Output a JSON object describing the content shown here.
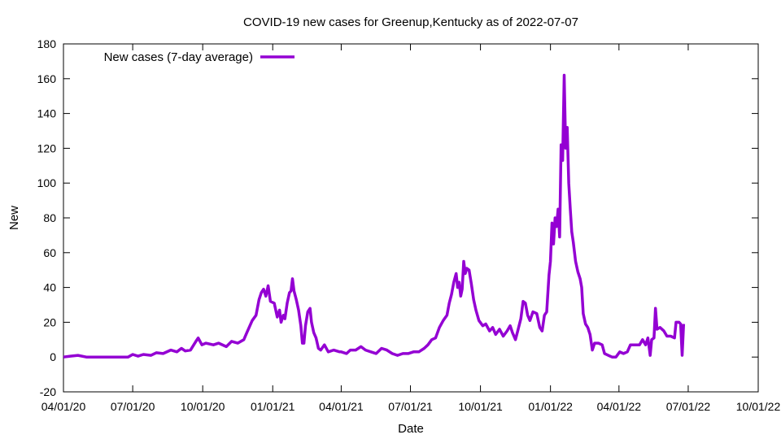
{
  "chart_data": {
    "type": "line",
    "title": "COVID-19 new cases for Greenup,Kentucky as of 2022-07-07",
    "xlabel": "Date",
    "ylabel": "New",
    "ylim": [
      -20,
      180
    ],
    "yticks": [
      -20,
      0,
      20,
      40,
      60,
      80,
      100,
      120,
      140,
      160,
      180
    ],
    "xlim": [
      "2020-04-01",
      "2022-10-01"
    ],
    "xticks": [
      {
        "date": "2020-04-01",
        "label": "04/01/20"
      },
      {
        "date": "2020-07-01",
        "label": "07/01/20"
      },
      {
        "date": "2020-10-01",
        "label": "10/01/20"
      },
      {
        "date": "2021-01-01",
        "label": "01/01/21"
      },
      {
        "date": "2021-04-01",
        "label": "04/01/21"
      },
      {
        "date": "2021-07-01",
        "label": "07/01/21"
      },
      {
        "date": "2021-10-01",
        "label": "10/01/21"
      },
      {
        "date": "2022-01-01",
        "label": "01/01/22"
      },
      {
        "date": "2022-04-01",
        "label": "04/01/22"
      },
      {
        "date": "2022-07-01",
        "label": "07/01/22"
      },
      {
        "date": "2022-10-01",
        "label": "10/01/22"
      }
    ],
    "legend": "top-left",
    "series": [
      {
        "name": "New cases (7-day average)",
        "color": "#9400d3",
        "points": [
          [
            "2020-04-01",
            0
          ],
          [
            "2020-04-10",
            0.5
          ],
          [
            "2020-04-20",
            1
          ],
          [
            "2020-05-01",
            0
          ],
          [
            "2020-05-20",
            0
          ],
          [
            "2020-06-10",
            0
          ],
          [
            "2020-06-25",
            0
          ],
          [
            "2020-07-01",
            1.5
          ],
          [
            "2020-07-08",
            0.5
          ],
          [
            "2020-07-15",
            1.5
          ],
          [
            "2020-07-25",
            1
          ],
          [
            "2020-08-01",
            2.5
          ],
          [
            "2020-08-10",
            2
          ],
          [
            "2020-08-20",
            4
          ],
          [
            "2020-08-28",
            3
          ],
          [
            "2020-09-03",
            5
          ],
          [
            "2020-09-08",
            3.5
          ],
          [
            "2020-09-15",
            4
          ],
          [
            "2020-09-22",
            9
          ],
          [
            "2020-09-25",
            11
          ],
          [
            "2020-09-30",
            7
          ],
          [
            "2020-10-05",
            8
          ],
          [
            "2020-10-15",
            7
          ],
          [
            "2020-10-22",
            8
          ],
          [
            "2020-11-01",
            6
          ],
          [
            "2020-11-08",
            9
          ],
          [
            "2020-11-16",
            8
          ],
          [
            "2020-11-24",
            10
          ],
          [
            "2020-11-28",
            14
          ],
          [
            "2020-12-05",
            21
          ],
          [
            "2020-12-10",
            24
          ],
          [
            "2020-12-14",
            33
          ],
          [
            "2020-12-17",
            37
          ],
          [
            "2020-12-20",
            39
          ],
          [
            "2020-12-23",
            35
          ],
          [
            "2020-12-26",
            41
          ],
          [
            "2020-12-29",
            32
          ],
          [
            "2021-01-03",
            31
          ],
          [
            "2021-01-07",
            23
          ],
          [
            "2021-01-10",
            27
          ],
          [
            "2021-01-12",
            20
          ],
          [
            "2021-01-15",
            24
          ],
          [
            "2021-01-17",
            22
          ],
          [
            "2021-01-20",
            31
          ],
          [
            "2021-01-23",
            37
          ],
          [
            "2021-01-25",
            38
          ],
          [
            "2021-01-27",
            45
          ],
          [
            "2021-01-29",
            38
          ],
          [
            "2021-02-01",
            33
          ],
          [
            "2021-02-04",
            27
          ],
          [
            "2021-02-07",
            18
          ],
          [
            "2021-02-09",
            8
          ],
          [
            "2021-02-11",
            8
          ],
          [
            "2021-02-13",
            18
          ],
          [
            "2021-02-16",
            26
          ],
          [
            "2021-02-19",
            28
          ],
          [
            "2021-02-21",
            20
          ],
          [
            "2021-02-24",
            14
          ],
          [
            "2021-02-27",
            11
          ],
          [
            "2021-03-02",
            5
          ],
          [
            "2021-03-05",
            4
          ],
          [
            "2021-03-10",
            7
          ],
          [
            "2021-03-15",
            3
          ],
          [
            "2021-03-22",
            4
          ],
          [
            "2021-03-30",
            3
          ],
          [
            "2021-04-01",
            3
          ],
          [
            "2021-04-08",
            2
          ],
          [
            "2021-04-13",
            4
          ],
          [
            "2021-04-20",
            4
          ],
          [
            "2021-04-27",
            6
          ],
          [
            "2021-05-03",
            4
          ],
          [
            "2021-05-10",
            3
          ],
          [
            "2021-05-17",
            2
          ],
          [
            "2021-05-24",
            5
          ],
          [
            "2021-05-31",
            4
          ],
          [
            "2021-06-07",
            2
          ],
          [
            "2021-06-14",
            1
          ],
          [
            "2021-06-21",
            2
          ],
          [
            "2021-06-28",
            2
          ],
          [
            "2021-07-05",
            3
          ],
          [
            "2021-07-12",
            3
          ],
          [
            "2021-07-19",
            5
          ],
          [
            "2021-07-24",
            7
          ],
          [
            "2021-07-29",
            10
          ],
          [
            "2021-08-03",
            11
          ],
          [
            "2021-08-08",
            17
          ],
          [
            "2021-08-13",
            21
          ],
          [
            "2021-08-18",
            24
          ],
          [
            "2021-08-21",
            31
          ],
          [
            "2021-08-24",
            36
          ],
          [
            "2021-08-27",
            43
          ],
          [
            "2021-08-30",
            48
          ],
          [
            "2021-09-01",
            40
          ],
          [
            "2021-09-03",
            43
          ],
          [
            "2021-09-05",
            35
          ],
          [
            "2021-09-07",
            39
          ],
          [
            "2021-09-09",
            55
          ],
          [
            "2021-09-11",
            48
          ],
          [
            "2021-09-13",
            51
          ],
          [
            "2021-09-16",
            50
          ],
          [
            "2021-09-19",
            42
          ],
          [
            "2021-09-22",
            33
          ],
          [
            "2021-09-25",
            27
          ],
          [
            "2021-09-29",
            21
          ],
          [
            "2021-10-04",
            18
          ],
          [
            "2021-10-08",
            19
          ],
          [
            "2021-10-13",
            15
          ],
          [
            "2021-10-17",
            17
          ],
          [
            "2021-10-21",
            13
          ],
          [
            "2021-10-26",
            16
          ],
          [
            "2021-10-31",
            12
          ],
          [
            "2021-11-05",
            15
          ],
          [
            "2021-11-09",
            18
          ],
          [
            "2021-11-12",
            14
          ],
          [
            "2021-11-16",
            10
          ],
          [
            "2021-11-19",
            15
          ],
          [
            "2021-11-23",
            22
          ],
          [
            "2021-11-26",
            32
          ],
          [
            "2021-11-29",
            31
          ],
          [
            "2021-12-02",
            24
          ],
          [
            "2021-12-05",
            21
          ],
          [
            "2021-12-09",
            26
          ],
          [
            "2021-12-14",
            25
          ],
          [
            "2021-12-18",
            17
          ],
          [
            "2021-12-21",
            15
          ],
          [
            "2021-12-24",
            24
          ],
          [
            "2021-12-27",
            26
          ],
          [
            "2021-12-30",
            47
          ],
          [
            "2022-01-01",
            55
          ],
          [
            "2022-01-03",
            77
          ],
          [
            "2022-01-05",
            65
          ],
          [
            "2022-01-07",
            80
          ],
          [
            "2022-01-09",
            75
          ],
          [
            "2022-01-11",
            85
          ],
          [
            "2022-01-13",
            69
          ],
          [
            "2022-01-15",
            122
          ],
          [
            "2022-01-17",
            113
          ],
          [
            "2022-01-19",
            162
          ],
          [
            "2022-01-21",
            120
          ],
          [
            "2022-01-23",
            132
          ],
          [
            "2022-01-25",
            100
          ],
          [
            "2022-01-27",
            85
          ],
          [
            "2022-01-29",
            72
          ],
          [
            "2022-01-31",
            66
          ],
          [
            "2022-02-03",
            55
          ],
          [
            "2022-02-06",
            49
          ],
          [
            "2022-02-09",
            45
          ],
          [
            "2022-02-11",
            40
          ],
          [
            "2022-02-13",
            25
          ],
          [
            "2022-02-16",
            19
          ],
          [
            "2022-02-19",
            17
          ],
          [
            "2022-02-22",
            13
          ],
          [
            "2022-02-25",
            4
          ],
          [
            "2022-02-28",
            8
          ],
          [
            "2022-03-05",
            8
          ],
          [
            "2022-03-10",
            7
          ],
          [
            "2022-03-13",
            2
          ],
          [
            "2022-03-18",
            1
          ],
          [
            "2022-03-23",
            0
          ],
          [
            "2022-03-28",
            0
          ],
          [
            "2022-04-02",
            3
          ],
          [
            "2022-04-07",
            2
          ],
          [
            "2022-04-12",
            3
          ],
          [
            "2022-04-16",
            7
          ],
          [
            "2022-04-22",
            7
          ],
          [
            "2022-04-28",
            7
          ],
          [
            "2022-05-02",
            10
          ],
          [
            "2022-05-06",
            7
          ],
          [
            "2022-05-09",
            11
          ],
          [
            "2022-05-12",
            1
          ],
          [
            "2022-05-14",
            10
          ],
          [
            "2022-05-17",
            11
          ],
          [
            "2022-05-19",
            28
          ],
          [
            "2022-05-21",
            16
          ],
          [
            "2022-05-25",
            17
          ],
          [
            "2022-05-30",
            15
          ],
          [
            "2022-06-03",
            12
          ],
          [
            "2022-06-08",
            12
          ],
          [
            "2022-06-13",
            11
          ],
          [
            "2022-06-15",
            20
          ],
          [
            "2022-06-19",
            20
          ],
          [
            "2022-06-21",
            19
          ],
          [
            "2022-06-23",
            1
          ],
          [
            "2022-06-25",
            19
          ]
        ]
      }
    ]
  }
}
